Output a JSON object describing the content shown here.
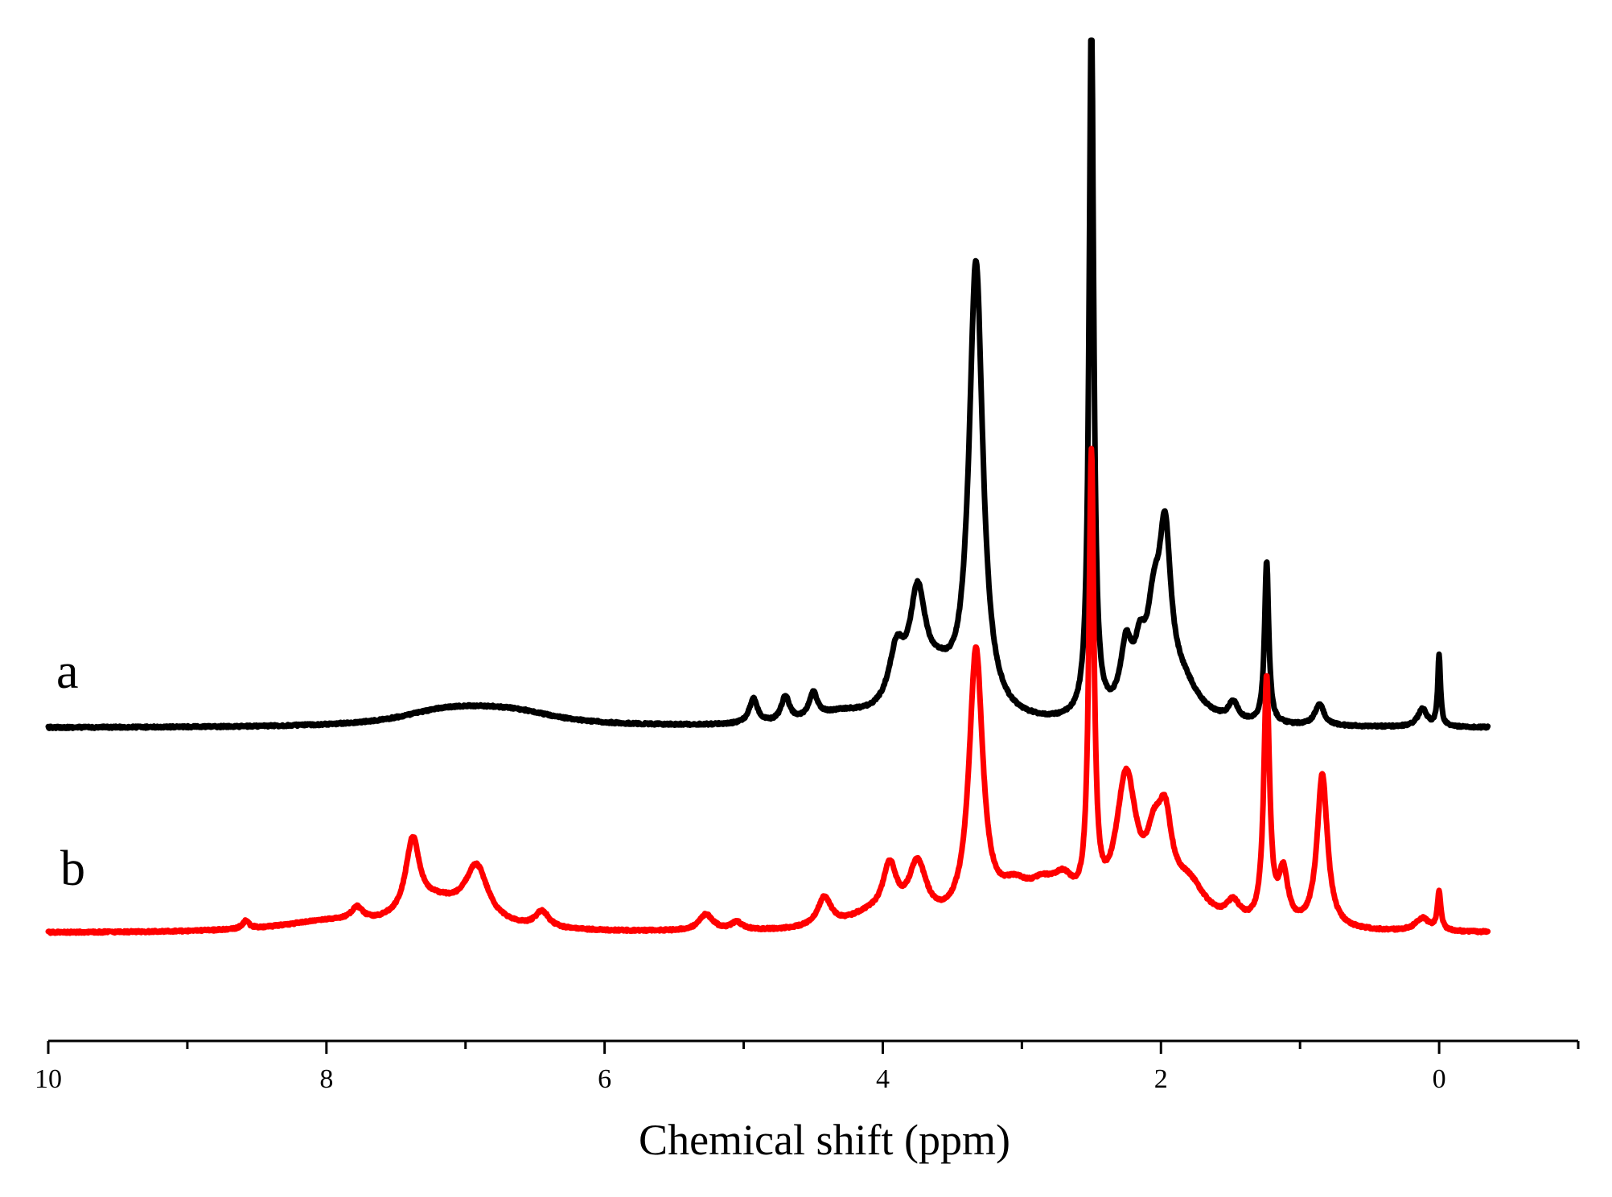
{
  "chart_data": {
    "type": "line",
    "xlabel": "Chemical shift (ppm)",
    "ylabel": "",
    "xlim": [
      10,
      -1
    ],
    "x_reversed": true,
    "xticks": [
      10,
      8,
      6,
      4,
      2,
      0
    ],
    "xticks_minor": [
      9,
      7,
      5,
      3,
      1,
      -1
    ],
    "grid": false,
    "series": [
      {
        "name": "a",
        "color": "#000000",
        "baseline": 0.0,
        "peaks": [
          {
            "x": 7.2,
            "h": 0.012,
            "w": 0.35
          },
          {
            "x": 6.9,
            "h": 0.018,
            "w": 0.45
          },
          {
            "x": 6.6,
            "h": 0.01,
            "w": 0.35
          },
          {
            "x": 4.93,
            "h": 0.035,
            "w": 0.035
          },
          {
            "x": 4.7,
            "h": 0.035,
            "w": 0.035
          },
          {
            "x": 4.5,
            "h": 0.035,
            "w": 0.035
          },
          {
            "x": 4.3,
            "h": 0.015,
            "w": 0.25
          },
          {
            "x": 3.9,
            "h": 0.08,
            "w": 0.07
          },
          {
            "x": 3.75,
            "h": 0.15,
            "w": 0.07
          },
          {
            "x": 3.6,
            "h": 0.05,
            "w": 0.15
          },
          {
            "x": 3.33,
            "h": 0.64,
            "w": 0.06
          },
          {
            "x": 2.5,
            "h": 1.0,
            "w": 0.02
          },
          {
            "x": 2.25,
            "h": 0.09,
            "w": 0.05
          },
          {
            "x": 2.15,
            "h": 0.07,
            "w": 0.05
          },
          {
            "x": 2.05,
            "h": 0.12,
            "w": 0.06
          },
          {
            "x": 1.97,
            "h": 0.22,
            "w": 0.05
          },
          {
            "x": 1.85,
            "h": 0.05,
            "w": 0.15
          },
          {
            "x": 1.48,
            "h": 0.025,
            "w": 0.04
          },
          {
            "x": 1.24,
            "h": 0.23,
            "w": 0.018
          },
          {
            "x": 0.86,
            "h": 0.03,
            "w": 0.04
          },
          {
            "x": 0.12,
            "h": 0.025,
            "w": 0.04
          },
          {
            "x": 0.0,
            "h": 0.1,
            "w": 0.012
          }
        ]
      },
      {
        "name": "b",
        "color": "#ff0000",
        "baseline": 0.0,
        "peaks": [
          {
            "x": 8.58,
            "h": 0.012,
            "w": 0.03
          },
          {
            "x": 8.0,
            "h": 0.015,
            "w": 0.4
          },
          {
            "x": 7.78,
            "h": 0.02,
            "w": 0.05
          },
          {
            "x": 7.38,
            "h": 0.115,
            "w": 0.06
          },
          {
            "x": 7.2,
            "h": 0.04,
            "w": 0.25
          },
          {
            "x": 6.92,
            "h": 0.085,
            "w": 0.1
          },
          {
            "x": 6.45,
            "h": 0.025,
            "w": 0.06
          },
          {
            "x": 5.27,
            "h": 0.025,
            "w": 0.06
          },
          {
            "x": 5.05,
            "h": 0.012,
            "w": 0.05
          },
          {
            "x": 4.42,
            "h": 0.045,
            "w": 0.06
          },
          {
            "x": 4.1,
            "h": 0.02,
            "w": 0.2
          },
          {
            "x": 3.95,
            "h": 0.08,
            "w": 0.06
          },
          {
            "x": 3.75,
            "h": 0.09,
            "w": 0.08
          },
          {
            "x": 3.33,
            "h": 0.42,
            "w": 0.06
          },
          {
            "x": 3.05,
            "h": 0.05,
            "w": 0.15
          },
          {
            "x": 2.85,
            "h": 0.04,
            "w": 0.12
          },
          {
            "x": 2.7,
            "h": 0.05,
            "w": 0.1
          },
          {
            "x": 2.5,
            "h": 0.7,
            "w": 0.022
          },
          {
            "x": 2.25,
            "h": 0.22,
            "w": 0.09
          },
          {
            "x": 2.05,
            "h": 0.09,
            "w": 0.07
          },
          {
            "x": 1.97,
            "h": 0.12,
            "w": 0.06
          },
          {
            "x": 1.8,
            "h": 0.06,
            "w": 0.15
          },
          {
            "x": 1.48,
            "h": 0.03,
            "w": 0.06
          },
          {
            "x": 1.24,
            "h": 0.38,
            "w": 0.025
          },
          {
            "x": 1.12,
            "h": 0.08,
            "w": 0.04
          },
          {
            "x": 0.84,
            "h": 0.24,
            "w": 0.045
          },
          {
            "x": 0.12,
            "h": 0.02,
            "w": 0.06
          },
          {
            "x": 0.0,
            "h": 0.06,
            "w": 0.015
          }
        ]
      }
    ]
  }
}
